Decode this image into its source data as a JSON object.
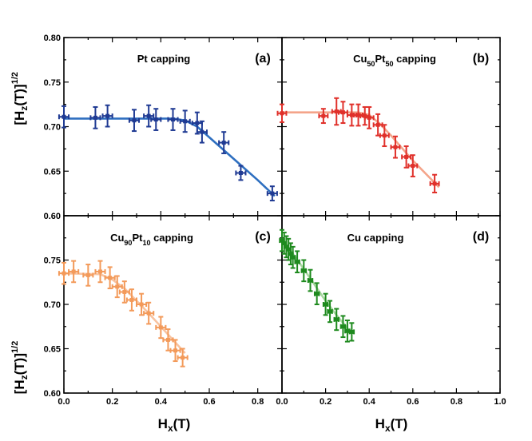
{
  "figure": {
    "ylabel": {
      "base": "[H",
      "sub": "z",
      "rest": "(T)]",
      "sup": "1/2"
    },
    "xlabel": {
      "base": "H",
      "sub": "x",
      "rest": "(T)"
    }
  },
  "chart_data": [
    {
      "type": "scatter",
      "panel": "(a)",
      "title": {
        "pre": "Pt capping",
        "sub1": "",
        "mid": "",
        "sub2": "",
        "post": ""
      },
      "color": "#1f3a93",
      "fit_color": "#2e6fc0",
      "xlim": [
        0.0,
        0.9
      ],
      "ylim": [
        0.6,
        0.8
      ],
      "xticks": [],
      "yticks": [
        "0.80",
        "0.75",
        "0.70",
        "0.65",
        "0.60"
      ],
      "x": [
        0.0,
        0.13,
        0.18,
        0.29,
        0.35,
        0.38,
        0.45,
        0.5,
        0.55,
        0.57,
        0.66,
        0.73,
        0.86
      ],
      "y": [
        0.711,
        0.71,
        0.712,
        0.707,
        0.712,
        0.708,
        0.708,
        0.706,
        0.704,
        0.694,
        0.682,
        0.648,
        0.625
      ],
      "yerr": [
        0.012,
        0.012,
        0.012,
        0.012,
        0.012,
        0.012,
        0.012,
        0.012,
        0.012,
        0.012,
        0.012,
        0.008,
        0.008
      ],
      "xerr": [
        0.02,
        0.02,
        0.02,
        0.02,
        0.02,
        0.02,
        0.02,
        0.02,
        0.02,
        0.02,
        0.02,
        0.02,
        0.02
      ],
      "fit": {
        "x": [
          0.0,
          0.45,
          0.5,
          0.55,
          0.6,
          0.7,
          0.8,
          0.87
        ],
        "y": [
          0.709,
          0.709,
          0.707,
          0.7,
          0.688,
          0.664,
          0.64,
          0.622
        ]
      }
    },
    {
      "type": "scatter",
      "panel": "(b)",
      "title": {
        "pre": "Cu",
        "sub1": "50",
        "mid": "Pt",
        "sub2": "50",
        "post": " capping"
      },
      "color": "#e0302a",
      "fit_color": "#f4a48a",
      "xlim": [
        0.0,
        1.0
      ],
      "ylim": [
        0.6,
        0.8
      ],
      "xticks": [],
      "yticks": [],
      "x": [
        0.0,
        0.19,
        0.25,
        0.28,
        0.32,
        0.35,
        0.38,
        0.4,
        0.44,
        0.47,
        0.52,
        0.57,
        0.6,
        0.7
      ],
      "y": [
        0.715,
        0.712,
        0.717,
        0.716,
        0.713,
        0.713,
        0.712,
        0.71,
        0.702,
        0.69,
        0.677,
        0.666,
        0.656,
        0.636
      ],
      "yerr": [
        0.01,
        0.008,
        0.015,
        0.012,
        0.012,
        0.012,
        0.01,
        0.012,
        0.012,
        0.012,
        0.012,
        0.012,
        0.012,
        0.01
      ],
      "xerr": [
        0.02,
        0.02,
        0.02,
        0.02,
        0.02,
        0.02,
        0.02,
        0.02,
        0.02,
        0.02,
        0.02,
        0.02,
        0.02,
        0.02
      ],
      "fit": {
        "x": [
          0.0,
          0.35,
          0.4,
          0.45,
          0.5,
          0.6,
          0.7,
          0.72
        ],
        "y": [
          0.716,
          0.716,
          0.713,
          0.703,
          0.69,
          0.662,
          0.637,
          0.632
        ]
      }
    },
    {
      "type": "scatter",
      "panel": "(c)",
      "title": {
        "pre": "Cu",
        "sub1": "90",
        "mid": "Pt",
        "sub2": "10",
        "post": " capping"
      },
      "color": "#f39a5a",
      "fit_color": "#f8c3a0",
      "xlim": [
        0.0,
        0.9
      ],
      "ylim": [
        0.6,
        0.8
      ],
      "xticks": [
        "0.0",
        "0.2",
        "0.4",
        "0.6",
        "0.8"
      ],
      "yticks": [
        "0.75",
        "0.70",
        "0.65",
        "0.60"
      ],
      "x": [
        0.0,
        0.04,
        0.1,
        0.15,
        0.19,
        0.22,
        0.25,
        0.28,
        0.32,
        0.35,
        0.4,
        0.43,
        0.46,
        0.49
      ],
      "y": [
        0.735,
        0.737,
        0.733,
        0.737,
        0.73,
        0.72,
        0.714,
        0.705,
        0.7,
        0.69,
        0.674,
        0.66,
        0.648,
        0.64
      ],
      "yerr": [
        0.012,
        0.012,
        0.012,
        0.012,
        0.012,
        0.012,
        0.012,
        0.012,
        0.012,
        0.012,
        0.012,
        0.012,
        0.012,
        0.01
      ],
      "xerr": [
        0.02,
        0.02,
        0.02,
        0.02,
        0.02,
        0.02,
        0.02,
        0.02,
        0.02,
        0.02,
        0.02,
        0.02,
        0.02,
        0.02
      ],
      "fit": {
        "x": [
          0.0,
          0.15,
          0.2,
          0.25,
          0.3,
          0.35,
          0.4,
          0.45,
          0.5
        ],
        "y": [
          0.735,
          0.734,
          0.728,
          0.718,
          0.704,
          0.69,
          0.675,
          0.66,
          0.645
        ]
      }
    },
    {
      "type": "scatter",
      "panel": "(d)",
      "title": {
        "pre": "Cu capping",
        "sub1": "",
        "mid": "",
        "sub2": "",
        "post": ""
      },
      "color": "#1e8a1e",
      "fit_color": "#a8d8a0",
      "xlim": [
        0.0,
        1.0
      ],
      "ylim": [
        0.6,
        0.8
      ],
      "xticks": [
        "0.0",
        "0.2",
        "0.4",
        "0.6",
        "0.8",
        "1.0"
      ],
      "yticks": [],
      "x": [
        0.0,
        0.01,
        0.02,
        0.03,
        0.04,
        0.05,
        0.07,
        0.1,
        0.13,
        0.16,
        0.2,
        0.22,
        0.25,
        0.28,
        0.3,
        0.32
      ],
      "y": [
        0.772,
        0.769,
        0.765,
        0.762,
        0.757,
        0.753,
        0.748,
        0.738,
        0.727,
        0.712,
        0.7,
        0.692,
        0.683,
        0.675,
        0.67,
        0.669
      ],
      "yerr": [
        0.012,
        0.012,
        0.012,
        0.012,
        0.012,
        0.012,
        0.012,
        0.012,
        0.012,
        0.012,
        0.012,
        0.012,
        0.012,
        0.012,
        0.012,
        0.01
      ],
      "xerr": [
        0.01,
        0.01,
        0.01,
        0.01,
        0.01,
        0.01,
        0.01,
        0.01,
        0.01,
        0.01,
        0.01,
        0.01,
        0.01,
        0.01,
        0.01,
        0.01
      ],
      "fit": {
        "x": [
          0.0,
          0.05,
          0.1,
          0.15,
          0.2,
          0.25,
          0.3,
          0.32
        ],
        "y": [
          0.772,
          0.757,
          0.74,
          0.722,
          0.704,
          0.688,
          0.673,
          0.668
        ]
      }
    }
  ]
}
